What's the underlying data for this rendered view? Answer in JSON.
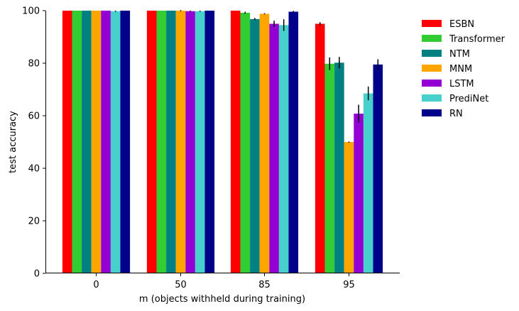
{
  "chart_data": {
    "type": "bar",
    "xlabel": "m (objects withheld during training)",
    "ylabel": "test accuracy",
    "ylim": [
      0,
      100
    ],
    "yticks": [
      0,
      20,
      40,
      60,
      80,
      100
    ],
    "categories": [
      "0",
      "50",
      "85",
      "95"
    ],
    "grid": false,
    "legend_position": "outside-right",
    "series": [
      {
        "name": "ESBN",
        "color": "#ff0000",
        "values": [
          100,
          100,
          100,
          95
        ],
        "errors": [
          0,
          0,
          0,
          0.6
        ]
      },
      {
        "name": "Transformer",
        "color": "#32cd32",
        "values": [
          100,
          100,
          99.2,
          79.8
        ],
        "errors": [
          0,
          0,
          0.4,
          2.4
        ]
      },
      {
        "name": "NTM",
        "color": "#008080",
        "values": [
          100,
          100,
          96.8,
          80.2
        ],
        "errors": [
          0,
          0,
          0.4,
          2.2
        ]
      },
      {
        "name": "MNM",
        "color": "#ffa500",
        "values": [
          100,
          100,
          98.8,
          50
        ],
        "errors": [
          0,
          0.2,
          0.2,
          0.2
        ]
      },
      {
        "name": "LSTM",
        "color": "#9400d3",
        "values": [
          100,
          99.8,
          95,
          60.8
        ],
        "errors": [
          0,
          0.2,
          1.2,
          3.4
        ]
      },
      {
        "name": "PrediNet",
        "color": "#48d1cc",
        "values": [
          99.8,
          99.8,
          94.5,
          68.5
        ],
        "errors": [
          0.2,
          0.2,
          2.2,
          2.6
        ]
      },
      {
        "name": "RN",
        "color": "#00008b",
        "values": [
          100,
          100,
          99.6,
          79.5
        ],
        "errors": [
          0,
          0,
          0.3,
          2.0
        ]
      }
    ]
  }
}
